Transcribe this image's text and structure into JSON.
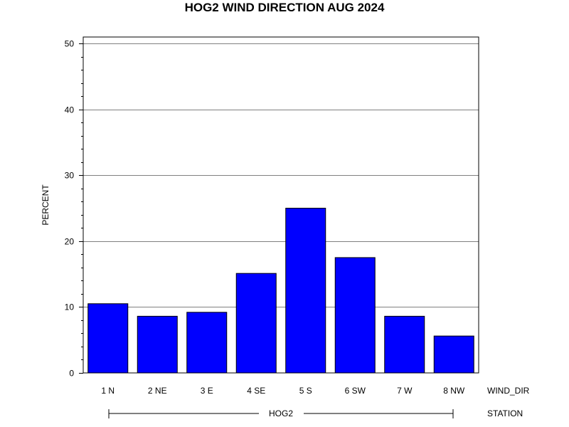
{
  "chart_data": {
    "type": "bar",
    "title": "HOG2 WIND DIRECTION AUG 2024",
    "ylabel": "PERCENT",
    "xlabel": "WIND_DIR",
    "group_axis_label": "STATION",
    "group_label": "HOG2",
    "categories": [
      "1 N",
      "2 NE",
      "3 E",
      "4 SE",
      "5 S",
      "6 SW",
      "7 W",
      "8 NW"
    ],
    "values": [
      10.5,
      8.6,
      9.2,
      15.1,
      25.0,
      17.5,
      8.6,
      5.6
    ],
    "ylim": [
      0,
      50
    ],
    "yticks": [
      "0",
      "10",
      "20",
      "30",
      "40",
      "50"
    ],
    "grid": true,
    "bar_color": "#0000ff"
  }
}
